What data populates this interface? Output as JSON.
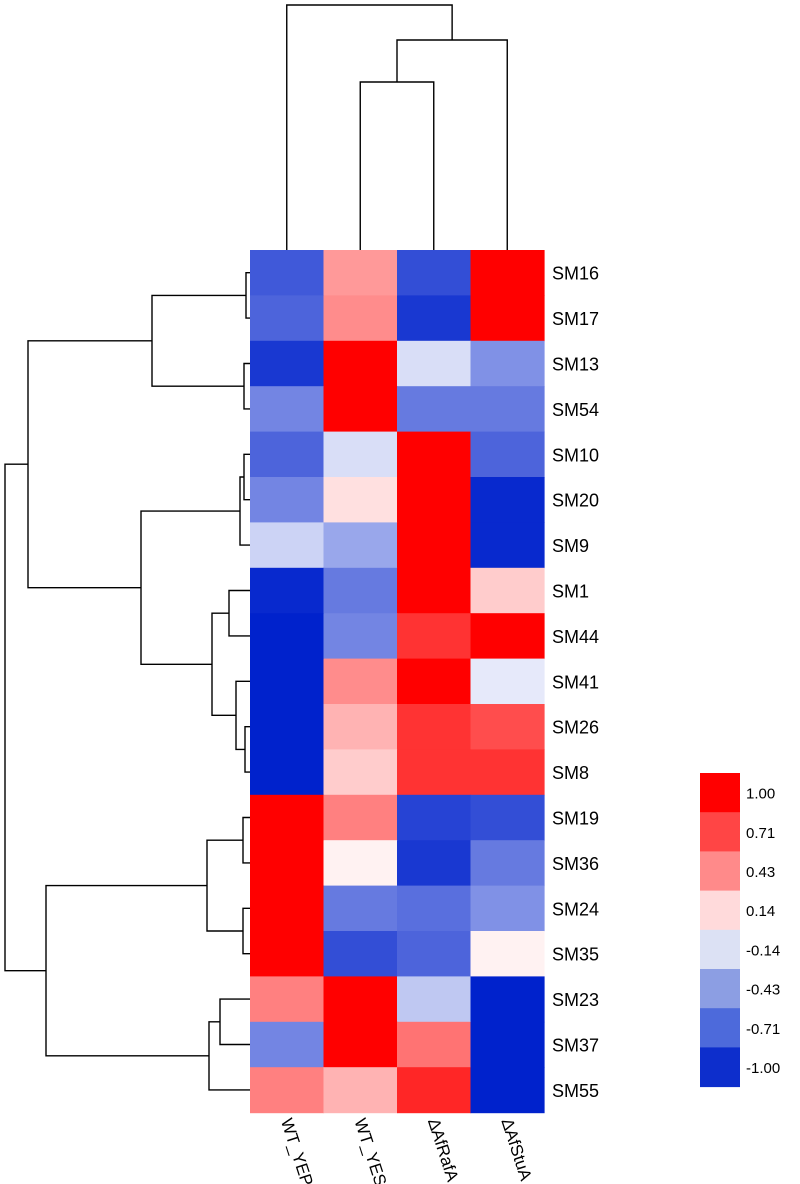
{
  "chart_data": {
    "type": "heatmap",
    "title": "",
    "columns": [
      "WT_YEP",
      "WT_YES",
      "ΔAfRafA",
      "ΔAfStuA"
    ],
    "rows": [
      "SM16",
      "SM17",
      "SM13",
      "SM54",
      "SM10",
      "SM20",
      "SM9",
      "SM1",
      "SM44",
      "SM41",
      "SM26",
      "SM8",
      "SM19",
      "SM36",
      "SM24",
      "SM35",
      "SM23",
      "SM37",
      "SM55"
    ],
    "values": [
      [
        -0.75,
        0.4,
        -0.8,
        1.0
      ],
      [
        -0.7,
        0.45,
        -0.9,
        1.0
      ],
      [
        -0.9,
        1.0,
        -0.15,
        -0.5
      ],
      [
        -0.55,
        1.0,
        -0.6,
        -0.6
      ],
      [
        -0.7,
        -0.15,
        1.0,
        -0.7
      ],
      [
        -0.55,
        0.12,
        1.0,
        -0.97
      ],
      [
        -0.2,
        -0.4,
        1.0,
        -0.97
      ],
      [
        -0.97,
        -0.6,
        1.0,
        0.2
      ],
      [
        -1.0,
        -0.55,
        0.8,
        1.0
      ],
      [
        -1.0,
        0.45,
        1.0,
        -0.1
      ],
      [
        -1.0,
        0.3,
        0.8,
        0.7
      ],
      [
        -1.0,
        0.2,
        0.8,
        0.8
      ],
      [
        1.0,
        0.5,
        -0.85,
        -0.8
      ],
      [
        1.0,
        0.05,
        -0.9,
        -0.6
      ],
      [
        1.0,
        -0.6,
        -0.65,
        -0.5
      ],
      [
        1.0,
        -0.8,
        -0.7,
        0.05
      ],
      [
        0.5,
        1.0,
        -0.25,
        -1.0
      ],
      [
        -0.55,
        1.0,
        0.55,
        -1.0
      ],
      [
        0.5,
        0.3,
        0.85,
        -1.0
      ]
    ],
    "color_scale": {
      "min": -1.0,
      "max": 1.0,
      "stops": [
        "#0022cc",
        "#ffffff",
        "#ff0000"
      ]
    },
    "legend": {
      "placement": "bottom-right",
      "colors": [
        "#ff0000",
        "#ff4545",
        "#ff8a8a",
        "#ffdadb",
        "#dce1f4",
        "#8c9ee3",
        "#4d6adb",
        "#0d2ecc"
      ],
      "labels": [
        "1.00",
        "0.71",
        "0.43",
        "0.14",
        "-0.14",
        "-0.43",
        "-0.71",
        "-1.00"
      ]
    },
    "column_dendrogram": true,
    "row_dendrogram": true
  }
}
